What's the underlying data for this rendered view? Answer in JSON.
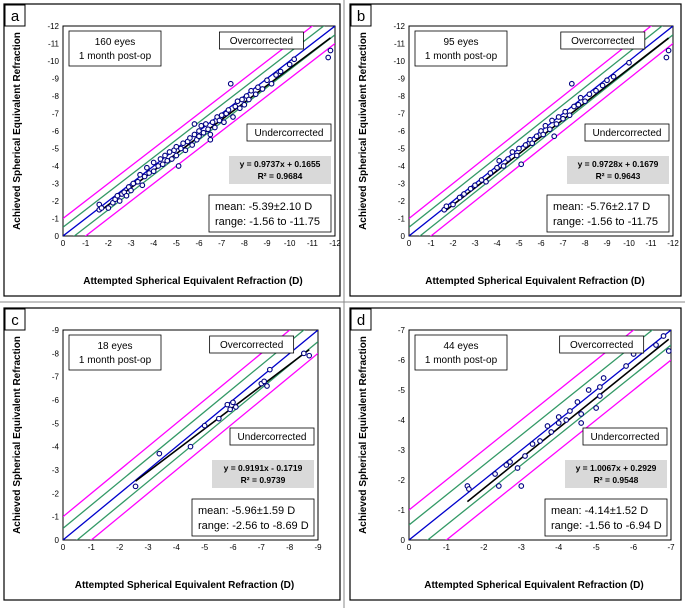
{
  "x_axis_label": "Attempted Spherical Equivalent Refraction (D)",
  "y_axis_label": "Achieved Spherical Equivalent Refraction",
  "label_over": "Overcorrected",
  "label_under": "Undercorrected",
  "colors": {
    "magenta": "#ff00ff",
    "green": "#339966",
    "blue": "#0000cc",
    "regression": "#000000",
    "points": "#000080",
    "eq_box": "#d9d9d9"
  },
  "chart_data": [
    {
      "type": "scatter",
      "panel": "a",
      "eyes": "160 eyes",
      "followup": "1 month post-op",
      "equation": "y = 0.9737x + 0.1655",
      "r2": "R² = 0.9684",
      "mean": "mean: -5.39±2.10 D",
      "range": "range: -1.56 to -11.75",
      "xlim": [
        0,
        -12
      ],
      "ylim": [
        0,
        -12
      ],
      "xticks": [
        0,
        -1,
        -2,
        -3,
        -4,
        -5,
        -6,
        -7,
        -8,
        -9,
        -10,
        -11,
        -12
      ],
      "yticks": [
        0,
        -1,
        -2,
        -3,
        -4,
        -5,
        -6,
        -7,
        -8,
        -9,
        -10,
        -11,
        -12
      ],
      "xtick_labels": [
        "0",
        "-1",
        "-2",
        "-3",
        "-4",
        "-5",
        "-6",
        "-7",
        "-8",
        "-9",
        "-10",
        "-11",
        "-12"
      ],
      "ytick_labels": [
        "0",
        "-1",
        "-2",
        "-3",
        "-4",
        "-5",
        "-6",
        "-7",
        "-8",
        "-9",
        "-10",
        "-11",
        "-12"
      ],
      "slope": 0.9737,
      "intercept": 0.1655,
      "points": [
        [
          -1.6,
          -1.5
        ],
        [
          -1.6,
          -1.8
        ],
        [
          -1.7,
          -1.6
        ],
        [
          -2.0,
          -1.6
        ],
        [
          -2.2,
          -1.9
        ],
        [
          -2.3,
          -2.1
        ],
        [
          -2.4,
          -2.3
        ],
        [
          -2.5,
          -2.0
        ],
        [
          -2.6,
          -2.4
        ],
        [
          -2.7,
          -2.5
        ],
        [
          -2.8,
          -2.3
        ],
        [
          -2.9,
          -2.8
        ],
        [
          -3.0,
          -2.6
        ],
        [
          -3.1,
          -3.0
        ],
        [
          -3.3,
          -3.1
        ],
        [
          -3.4,
          -3.5
        ],
        [
          -3.5,
          -2.9
        ],
        [
          -3.6,
          -3.4
        ],
        [
          -3.7,
          -3.9
        ],
        [
          -3.8,
          -3.6
        ],
        [
          -4.0,
          -3.7
        ],
        [
          -4.0,
          -4.2
        ],
        [
          -4.2,
          -4.0
        ],
        [
          -4.3,
          -4.4
        ],
        [
          -4.4,
          -4.1
        ],
        [
          -4.5,
          -4.6
        ],
        [
          -4.6,
          -4.3
        ],
        [
          -4.7,
          -4.8
        ],
        [
          -4.8,
          -4.4
        ],
        [
          -4.9,
          -4.9
        ],
        [
          -5.0,
          -4.6
        ],
        [
          -5.0,
          -5.1
        ],
        [
          -5.1,
          -4.0
        ],
        [
          -5.2,
          -5.0
        ],
        [
          -5.3,
          -5.3
        ],
        [
          -5.4,
          -4.9
        ],
        [
          -5.5,
          -5.4
        ],
        [
          -5.6,
          -5.6
        ],
        [
          -5.7,
          -5.2
        ],
        [
          -5.8,
          -5.8
        ],
        [
          -5.9,
          -5.5
        ],
        [
          -6.0,
          -6.0
        ],
        [
          -6.0,
          -5.7
        ],
        [
          -6.1,
          -6.3
        ],
        [
          -6.2,
          -5.9
        ],
        [
          -6.3,
          -6.4
        ],
        [
          -6.4,
          -6.1
        ],
        [
          -6.5,
          -5.8
        ],
        [
          -6.6,
          -6.5
        ],
        [
          -6.7,
          -6.2
        ],
        [
          -6.8,
          -6.8
        ],
        [
          -6.9,
          -6.6
        ],
        [
          -7.0,
          -6.9
        ],
        [
          -7.1,
          -6.5
        ],
        [
          -7.2,
          -7.0
        ],
        [
          -7.3,
          -7.2
        ],
        [
          -7.5,
          -6.8
        ],
        [
          -7.6,
          -7.4
        ],
        [
          -7.7,
          -7.7
        ],
        [
          -7.8,
          -7.3
        ],
        [
          -7.9,
          -7.8
        ],
        [
          -8.0,
          -7.5
        ],
        [
          -8.1,
          -8.0
        ],
        [
          -8.2,
          -7.8
        ],
        [
          -8.3,
          -8.3
        ],
        [
          -8.5,
          -8.1
        ],
        [
          -8.6,
          -8.5
        ],
        [
          -8.8,
          -8.4
        ],
        [
          -9.0,
          -8.9
        ],
        [
          -9.2,
          -8.7
        ],
        [
          -9.4,
          -9.2
        ],
        [
          -9.6,
          -9.4
        ],
        [
          -10.0,
          -9.8
        ],
        [
          -10.2,
          -10.1
        ],
        [
          -11.7,
          -10.2
        ],
        [
          -11.8,
          -10.6
        ],
        [
          -7.4,
          -8.7
        ],
        [
          -6.5,
          -5.5
        ],
        [
          -5.8,
          -6.4
        ]
      ]
    },
    {
      "type": "scatter",
      "panel": "b",
      "eyes": "95 eyes",
      "followup": "1 month post-op",
      "equation": "y = 0.9728x + 0.1679",
      "r2": "R² = 0.9643",
      "mean": "mean: -5.76±2.17 D",
      "range": "range: -1.56 to -11.75",
      "xlim": [
        0,
        -12
      ],
      "ylim": [
        0,
        -12
      ],
      "xticks": [
        0,
        -1,
        -2,
        -3,
        -4,
        -5,
        -6,
        -7,
        -8,
        -9,
        -10,
        -11,
        -12
      ],
      "yticks": [
        0,
        -1,
        -2,
        -3,
        -4,
        -5,
        -6,
        -7,
        -8,
        -9,
        -10,
        -11,
        -12
      ],
      "xtick_labels": [
        "0",
        "-1",
        "-2",
        "-3",
        "-4",
        "-5",
        "-6",
        "-7",
        "-8",
        "-9",
        "-10",
        "-11",
        "-12"
      ],
      "ytick_labels": [
        "0",
        "-1",
        "-2",
        "-3",
        "-4",
        "-5",
        "-6",
        "-7",
        "-8",
        "-9",
        "-10",
        "-11",
        "-12"
      ],
      "slope": 0.9728,
      "intercept": 0.1679,
      "points": [
        [
          -1.6,
          -1.5
        ],
        [
          -1.7,
          -1.7
        ],
        [
          -2.0,
          -1.8
        ],
        [
          -2.3,
          -2.2
        ],
        [
          -2.5,
          -2.4
        ],
        [
          -2.8,
          -2.7
        ],
        [
          -3.0,
          -2.9
        ],
        [
          -3.3,
          -3.2
        ],
        [
          -3.5,
          -3.1
        ],
        [
          -3.7,
          -3.6
        ],
        [
          -4.0,
          -3.9
        ],
        [
          -4.1,
          -4.3
        ],
        [
          -4.3,
          -4.0
        ],
        [
          -4.5,
          -4.4
        ],
        [
          -4.7,
          -4.8
        ],
        [
          -4.9,
          -4.6
        ],
        [
          -5.0,
          -5.0
        ],
        [
          -5.1,
          -4.1
        ],
        [
          -5.3,
          -5.2
        ],
        [
          -5.5,
          -5.5
        ],
        [
          -5.6,
          -5.3
        ],
        [
          -5.8,
          -5.7
        ],
        [
          -6.0,
          -6.0
        ],
        [
          -6.1,
          -5.8
        ],
        [
          -6.2,
          -6.3
        ],
        [
          -6.4,
          -6.1
        ],
        [
          -6.5,
          -6.6
        ],
        [
          -6.7,
          -6.4
        ],
        [
          -6.8,
          -6.8
        ],
        [
          -7.0,
          -6.7
        ],
        [
          -7.1,
          -7.1
        ],
        [
          -7.3,
          -6.9
        ],
        [
          -7.5,
          -7.4
        ],
        [
          -7.7,
          -7.5
        ],
        [
          -7.8,
          -7.9
        ],
        [
          -8.0,
          -7.7
        ],
        [
          -8.2,
          -8.1
        ],
        [
          -8.5,
          -8.3
        ],
        [
          -8.8,
          -8.6
        ],
        [
          -9.0,
          -8.9
        ],
        [
          -9.3,
          -9.1
        ],
        [
          -10.0,
          -9.9
        ],
        [
          -11.7,
          -10.2
        ],
        [
          -11.8,
          -10.6
        ],
        [
          -7.4,
          -8.7
        ],
        [
          -6.6,
          -5.7
        ]
      ]
    },
    {
      "type": "scatter",
      "panel": "c",
      "eyes": "18 eyes",
      "followup": "1 month post-op",
      "equation": "y = 0.9191x - 0.1719",
      "r2": "R² = 0.9739",
      "mean": "mean: -5.96±1.59 D",
      "range": "range: -2.56 to -8.69 D",
      "xlim": [
        0,
        -9
      ],
      "ylim": [
        0,
        -9
      ],
      "xticks": [
        0,
        -1,
        -2,
        -3,
        -4,
        -5,
        -6,
        -7,
        -8,
        -9
      ],
      "yticks": [
        0,
        -1,
        -2,
        -3,
        -4,
        -5,
        -6,
        -7,
        -8,
        -9
      ],
      "xtick_labels": [
        "0",
        "-1",
        "-2",
        "-3",
        "-4",
        "-5",
        "-6",
        "-7",
        "-8",
        "-9"
      ],
      "ytick_labels": [
        "0",
        "-1",
        "-2",
        "-3",
        "-4",
        "-5",
        "-6",
        "-7",
        "-8",
        "-9"
      ],
      "slope": 0.9191,
      "intercept": -0.1719,
      "points": [
        [
          -2.56,
          -2.3
        ],
        [
          -3.4,
          -3.7
        ],
        [
          -4.5,
          -4.0
        ],
        [
          -5.0,
          -4.9
        ],
        [
          -5.5,
          -5.2
        ],
        [
          -5.8,
          -5.8
        ],
        [
          -5.9,
          -5.6
        ],
        [
          -6.0,
          -5.9
        ],
        [
          -6.1,
          -5.7
        ],
        [
          -7.0,
          -6.7
        ],
        [
          -7.1,
          -6.8
        ],
        [
          -7.2,
          -6.6
        ],
        [
          -7.3,
          -7.3
        ],
        [
          -8.5,
          -8.0
        ],
        [
          -8.69,
          -7.9
        ]
      ]
    },
    {
      "type": "scatter",
      "panel": "d",
      "eyes": "44 eyes",
      "followup": "1 month post-op",
      "equation": "y = 1.0067x + 0.2929",
      "r2": "R² = 0.9548",
      "mean": "mean: -4.14±1.52 D",
      "range": "range: -1.56 to -6.94 D",
      "xlim": [
        0,
        -7
      ],
      "ylim": [
        0,
        -7
      ],
      "xticks": [
        0,
        -1,
        -2,
        -3,
        -4,
        -5,
        -6,
        -7
      ],
      "yticks": [
        0,
        -1,
        -2,
        -3,
        -4,
        -5,
        -6,
        -7
      ],
      "xtick_labels": [
        "0",
        "-1",
        "-2",
        "-3",
        "-4",
        "-5",
        "-6",
        "-7"
      ],
      "ytick_labels": [
        "0",
        "-1",
        "-2",
        "-3",
        "-4",
        "-5",
        "-6",
        "-7"
      ],
      "slope": 1.0067,
      "intercept": 0.2929,
      "points": [
        [
          -1.56,
          -1.8
        ],
        [
          -1.6,
          -1.7
        ],
        [
          -2.3,
          -2.2
        ],
        [
          -2.4,
          -1.8
        ],
        [
          -2.6,
          -2.5
        ],
        [
          -2.7,
          -2.6
        ],
        [
          -2.9,
          -2.4
        ],
        [
          -3.0,
          -1.8
        ],
        [
          -3.1,
          -2.8
        ],
        [
          -3.3,
          -3.2
        ],
        [
          -3.5,
          -3.3
        ],
        [
          -3.7,
          -3.8
        ],
        [
          -3.8,
          -3.6
        ],
        [
          -4.0,
          -3.9
        ],
        [
          -4.0,
          -4.1
        ],
        [
          -4.2,
          -4.0
        ],
        [
          -4.3,
          -4.3
        ],
        [
          -4.5,
          -4.6
        ],
        [
          -4.6,
          -4.2
        ],
        [
          -4.6,
          -3.9
        ],
        [
          -4.8,
          -5.0
        ],
        [
          -5.0,
          -4.4
        ],
        [
          -5.1,
          -5.1
        ],
        [
          -5.1,
          -4.8
        ],
        [
          -5.2,
          -5.4
        ],
        [
          -5.8,
          -5.8
        ],
        [
          -6.0,
          -6.2
        ],
        [
          -6.6,
          -6.5
        ],
        [
          -6.8,
          -6.8
        ],
        [
          -6.94,
          -6.3
        ]
      ]
    }
  ]
}
